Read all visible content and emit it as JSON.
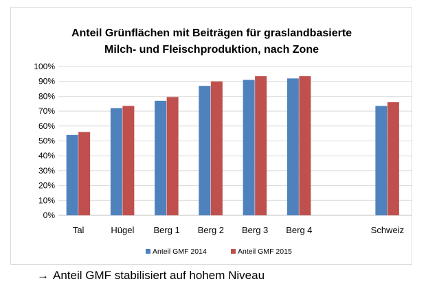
{
  "chart_data": {
    "type": "bar",
    "title_lines": [
      "Anteil Grünflächen mit Beiträgen für graslandbasierte",
      "Milch- und Fleischproduktion, nach Zone"
    ],
    "categories": [
      "Tal",
      "Hügel",
      "Berg 1",
      "Berg 2",
      "Berg 3",
      "Berg 4",
      "",
      "Schweiz"
    ],
    "series": [
      {
        "name": "Anteil GMF 2014",
        "color": "#4f81bd",
        "values": [
          54,
          72,
          77,
          87,
          91,
          92,
          null,
          73.5
        ]
      },
      {
        "name": "Anteil GMF 2015",
        "color": "#c0504d",
        "values": [
          56,
          73.5,
          79.5,
          90,
          93.5,
          93.5,
          null,
          76
        ]
      }
    ],
    "yticks": [
      "0%",
      "10%",
      "20%",
      "30%",
      "40%",
      "50%",
      "60%",
      "70%",
      "80%",
      "90%",
      "100%"
    ],
    "ylim": [
      0,
      100
    ],
    "grid": true,
    "legend_position": "bottom"
  },
  "caption": {
    "arrow": "→",
    "text": "Anteil GMF stabilisiert auf hohem Niveau"
  }
}
